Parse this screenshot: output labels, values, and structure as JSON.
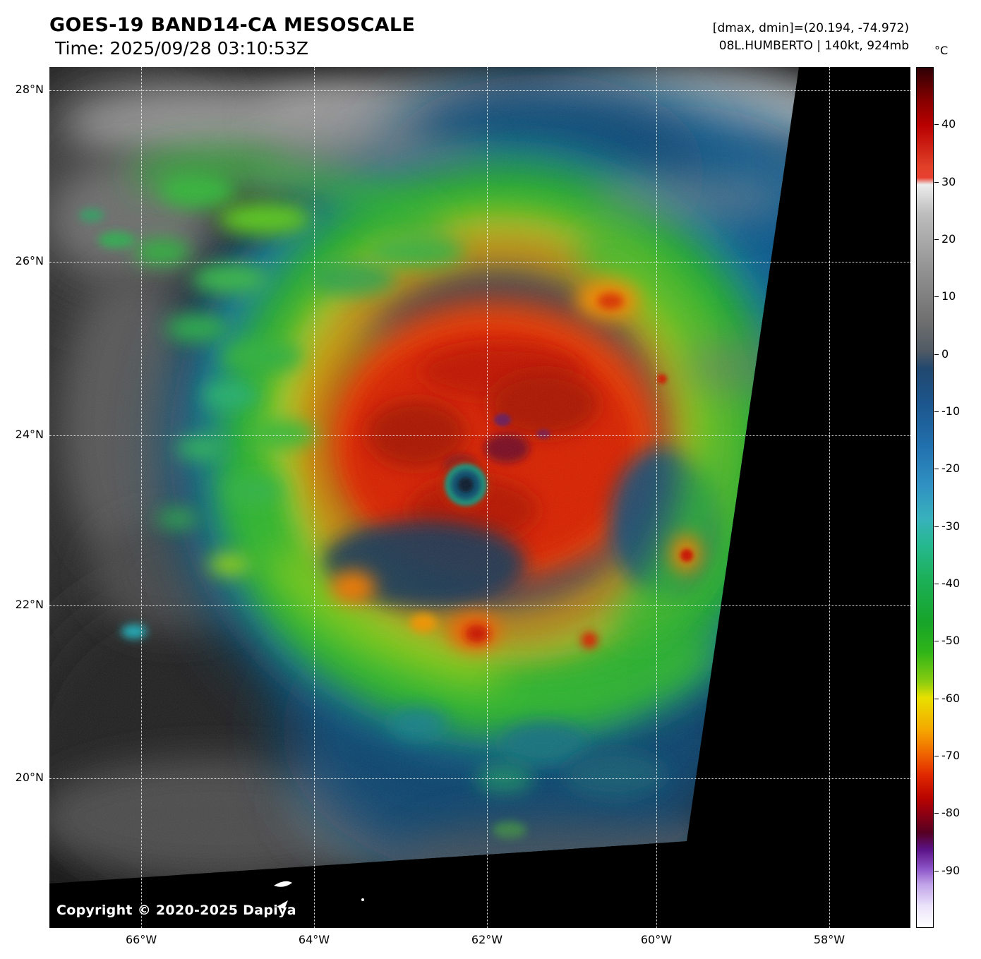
{
  "header": {
    "title": "GOES-19 BAND14-CA MESOSCALE",
    "time_line": "Time: 2025/09/28 03:10:53Z",
    "dmax_dmin": "[dmax, dmin]=(20.194, -74.972)",
    "storm_info": "08L.HUMBERTO | 140kt, 924mb"
  },
  "colorbar": {
    "unit_label": "°C",
    "tick_values": [
      40,
      30,
      20,
      10,
      0,
      -10,
      -20,
      -30,
      -40,
      -50,
      -60,
      -70,
      -80,
      -90
    ]
  },
  "axes": {
    "latitude_ticks": [
      "28°N",
      "26°N",
      "24°N",
      "22°N",
      "20°N"
    ],
    "longitude_ticks": [
      "66°W",
      "64°W",
      "62°W",
      "60°W",
      "58°W"
    ]
  },
  "image": {
    "copyright": "Copyright © 2020-2025 Dapiya"
  },
  "chart_data": {
    "type": "heatmap",
    "title": "GOES-19 BAND14-CA MESOSCALE",
    "subtitle": "Time: 2025/09/28 03:10:53Z",
    "x_tick_labels": [
      "66°W",
      "64°W",
      "62°W",
      "60°W",
      "58°W"
    ],
    "y_tick_labels": [
      "28°N",
      "26°N",
      "24°N",
      "22°N",
      "20°N"
    ],
    "colorbar_unit": "°C",
    "colorbar_tick_values": [
      40,
      30,
      20,
      10,
      0,
      -10,
      -20,
      -30,
      -40,
      -50,
      -60,
      -70,
      -80,
      -90
    ],
    "data_max_c": 20.194,
    "data_min_c": -74.972,
    "annotation": "08L.HUMBERTO | 140kt, 924mb",
    "grid": true,
    "legend_position": "right-colorbar"
  }
}
